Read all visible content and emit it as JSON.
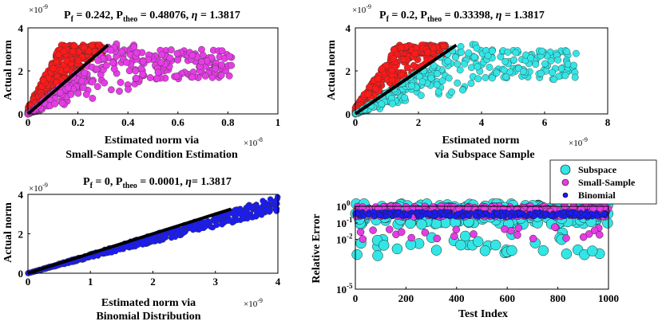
{
  "colors": {
    "red": "#ff1a1a",
    "magenta": "#e63ce6",
    "cyan": "#33e6e6",
    "blue": "#1a1aff",
    "line": "#000000"
  },
  "chart_data": [
    {
      "type": "scatter",
      "title_parts": {
        "a": "P",
        "a_sub": "f",
        "b": " = 0.242, P",
        "b_sub": "theo",
        "c": " = 0.48076, ",
        "eta": "η",
        "d": " = 1.3817"
      },
      "xlabel": [
        "Estimated norm via",
        "Small-Sample Condition Estimation"
      ],
      "ylabel": "Actual norm",
      "x_exponent": "×10^-8",
      "y_exponent": "×10^-9",
      "x_exp_base": "×10",
      "x_exp_pow": "-8",
      "y_exp_base": "×10",
      "y_exp_pow": "-9",
      "xlim": [
        0,
        1
      ],
      "ylim": [
        0,
        4
      ],
      "xticks": [
        "0",
        "0.2",
        "0.4",
        "0.6",
        "0.8",
        "1"
      ],
      "yticks": [
        "0",
        "2",
        "4"
      ],
      "series": [
        {
          "color": "red",
          "pattern": "above",
          "xmax": 0.3
        },
        {
          "color": "magenta",
          "pattern": "below",
          "xmax": 0.82
        }
      ],
      "reference_line": {
        "x": [
          0,
          0.32
        ],
        "y": [
          0,
          3.2
        ]
      }
    },
    {
      "type": "scatter",
      "title_parts": {
        "a": "P",
        "a_sub": "f",
        "b": " = 0.2, P",
        "b_sub": "theo",
        "c": " = 0.33398, ",
        "eta": "η",
        "d": " = 1.3817"
      },
      "xlabel": [
        "Estimated norm",
        "via Subspace Sample"
      ],
      "ylabel": "Actual norm",
      "x_exponent": "×10^-9",
      "y_exponent": "×10^-9",
      "x_exp_base": "×10",
      "x_exp_pow": "-9",
      "y_exp_base": "×10",
      "y_exp_pow": "-9",
      "xlim": [
        0,
        8
      ],
      "ylim": [
        0,
        4
      ],
      "xticks": [
        "0",
        "2",
        "4",
        "6",
        "8"
      ],
      "yticks": [
        "0",
        "2",
        "4"
      ],
      "series": [
        {
          "color": "red",
          "pattern": "above",
          "xmax": 2.9
        },
        {
          "color": "cyan",
          "pattern": "below",
          "xmax": 7.0
        }
      ],
      "reference_line": {
        "x": [
          0,
          3.2
        ],
        "y": [
          0,
          3.2
        ]
      }
    },
    {
      "type": "scatter",
      "title_parts": {
        "a": "P",
        "a_sub": "f",
        "b": " = 0, P",
        "b_sub": "theo",
        "c": " = 0.0001, ",
        "eta": "η",
        "d": "= 1.3817"
      },
      "xlabel": [
        "Estimated norm via",
        "Binomial Distribution"
      ],
      "ylabel": "Actual norm",
      "x_exponent": "×10^-9",
      "y_exponent": "×10^-9",
      "x_exp_base": "×10",
      "x_exp_pow": "-9",
      "y_exp_base": "×10",
      "y_exp_pow": "-9",
      "xlim": [
        0,
        4
      ],
      "ylim": [
        0,
        4
      ],
      "xticks": [
        "0",
        "1",
        "2",
        "3",
        "4"
      ],
      "yticks": [
        "0",
        "2",
        "4"
      ],
      "series": [
        {
          "color": "blue",
          "pattern": "band",
          "xmax": 4.0
        }
      ],
      "reference_line": {
        "x": [
          0,
          3.25
        ],
        "y": [
          0,
          3.25
        ]
      }
    },
    {
      "type": "scatter",
      "title": "",
      "xlabel": "Test Index",
      "ylabel": "Relative Error",
      "xlim": [
        0,
        1000
      ],
      "ylim_log": [
        -5,
        0
      ],
      "xticks": [
        "0",
        "200",
        "400",
        "600",
        "800",
        "1000"
      ],
      "yticks_exp": [
        "0",
        "-5"
      ],
      "ytick_base": "10",
      "extra_ytick": "10",
      "extra_ytick_pow": "-2",
      "extra_ytick2_pow": "-1",
      "log_scale": "y",
      "legend": {
        "placement": "top-right",
        "entries": [
          {
            "label": "Subspace",
            "color": "cyan"
          },
          {
            "label": "Small-Sample",
            "color": "magenta"
          },
          {
            "label": "Binomial",
            "color": "blue"
          }
        ]
      },
      "series": [
        {
          "name": "Subspace",
          "color": "cyan",
          "log10_center": -0.3,
          "log10_spread": 1.1
        },
        {
          "name": "Small-Sample",
          "color": "magenta",
          "log10_center": -0.25,
          "log10_spread": 0.55
        },
        {
          "name": "Binomial",
          "color": "blue",
          "log10_center": -0.45,
          "log10_spread": 0.25
        }
      ]
    }
  ]
}
